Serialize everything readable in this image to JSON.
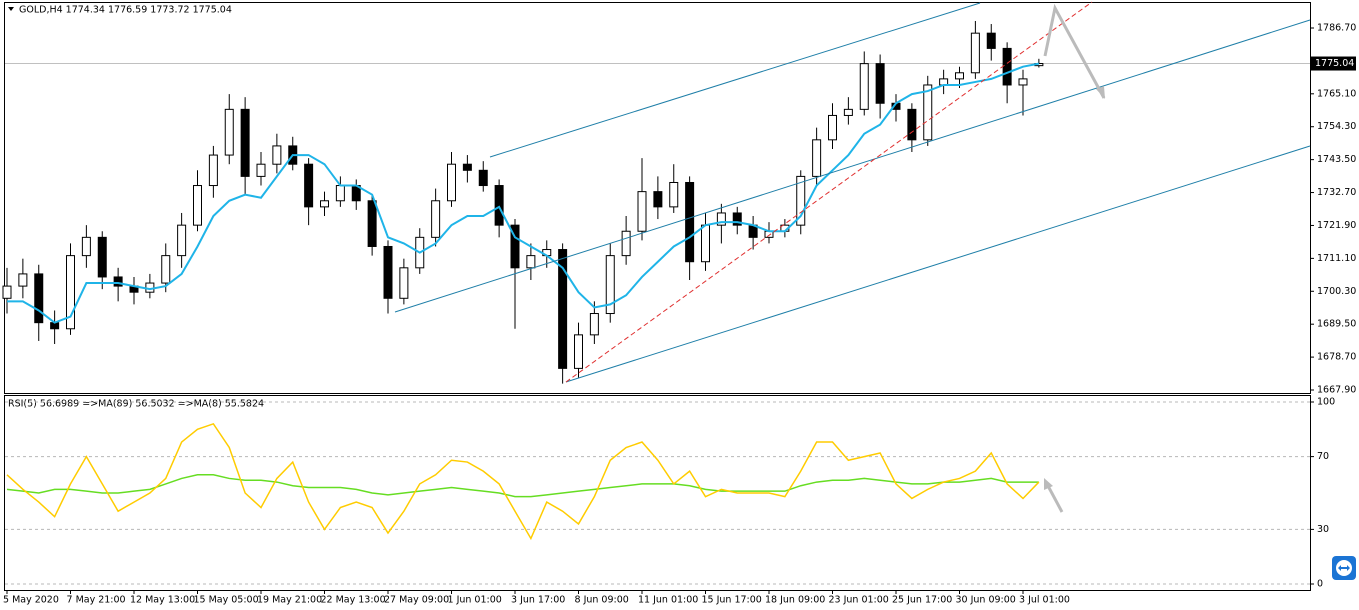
{
  "chart_data": [
    {
      "type": "candlestick",
      "title": "GOLD,H4  1774.34 1776.59 1773.72 1775.04",
      "categories": [
        "5 May 2020",
        null,
        null,
        null,
        "7 May 21:00",
        null,
        null,
        null,
        "12 May 13:00",
        null,
        null,
        null,
        "15 May 05:00",
        null,
        null,
        null,
        "19 May 21:00",
        null,
        null,
        null,
        "22 May 13:00",
        null,
        null,
        null,
        "27 May 09:00",
        null,
        null,
        null,
        "1 Jun 01:00",
        null,
        null,
        null,
        "3 Jun 17:00",
        null,
        null,
        null,
        "8 Jun 09:00",
        null,
        null,
        null,
        "11 Jun 01:00",
        null,
        null,
        null,
        "15 Jun 17:00",
        null,
        null,
        null,
        "18 Jun 09:00",
        null,
        null,
        null,
        "23 Jun 01:00",
        null,
        null,
        null,
        "25 Jun 17:00",
        null,
        null,
        null,
        "30 Jun 09:00",
        null,
        null,
        null,
        "3 Jul 01:00",
        null
      ],
      "open": [
        1698,
        1702,
        1706,
        1690,
        1688,
        1712,
        1718,
        1705,
        1702,
        1700,
        1703,
        1712,
        1722,
        1735,
        1745,
        1760,
        1738,
        1742,
        1748,
        1742,
        1728,
        1730,
        1735,
        1730,
        1715,
        1698,
        1708,
        1718,
        1730,
        1742,
        1740,
        1735,
        1722,
        1708,
        1712,
        1714,
        1675,
        1686,
        1693,
        1712,
        1720,
        1733,
        1728,
        1736,
        1710,
        1722,
        1726,
        1722,
        1718,
        1720,
        1722,
        1738,
        1750,
        1758,
        1760,
        1775,
        1762,
        1760,
        1750,
        1768,
        1770,
        1772,
        1785,
        1780,
        1768,
        1774.34
      ],
      "high": [
        1708,
        1711,
        1709,
        1694,
        1716,
        1722,
        1720,
        1708,
        1705,
        1706,
        1716,
        1726,
        1740,
        1748,
        1765,
        1764,
        1746,
        1752,
        1751,
        1744,
        1733,
        1738,
        1737,
        1732,
        1717,
        1711,
        1721,
        1734,
        1746,
        1745,
        1743,
        1737,
        1724,
        1716,
        1717,
        1716,
        1690,
        1697,
        1716,
        1725,
        1744,
        1738,
        1742,
        1738,
        1726,
        1729,
        1728,
        1725,
        1723,
        1724,
        1740,
        1754,
        1762,
        1764,
        1779,
        1778,
        1765,
        1762,
        1771,
        1773,
        1774,
        1789,
        1788,
        1782,
        1773,
        1776.59
      ],
      "low": [
        1693,
        1698,
        1684,
        1683,
        1686,
        1708,
        1701,
        1697,
        1696,
        1698,
        1700,
        1708,
        1720,
        1731,
        1742,
        1732,
        1735,
        1739,
        1740,
        1722,
        1725,
        1728,
        1727,
        1712,
        1693,
        1696,
        1706,
        1715,
        1728,
        1736,
        1733,
        1718,
        1688,
        1704,
        1708,
        1670,
        1672,
        1683,
        1690,
        1709,
        1717,
        1724,
        1726,
        1704,
        1707,
        1716,
        1719,
        1714,
        1716,
        1718,
        1719,
        1735,
        1747,
        1755,
        1758,
        1757,
        1756,
        1746,
        1748,
        1765,
        1767,
        1770,
        1776,
        1762,
        1758,
        1773.72
      ],
      "close": [
        1702,
        1706,
        1690,
        1688,
        1712,
        1718,
        1705,
        1702,
        1700,
        1703,
        1712,
        1722,
        1735,
        1745,
        1760,
        1738,
        1742,
        1748,
        1742,
        1728,
        1730,
        1735,
        1730,
        1715,
        1698,
        1708,
        1718,
        1730,
        1742,
        1740,
        1735,
        1722,
        1708,
        1712,
        1714,
        1675,
        1686,
        1693,
        1712,
        1720,
        1733,
        1728,
        1736,
        1710,
        1722,
        1726,
        1722,
        1718,
        1720,
        1722,
        1738,
        1750,
        1758,
        1760,
        1775,
        1762,
        1760,
        1750,
        1768,
        1770,
        1772,
        1785,
        1780,
        1768,
        1770,
        1775.04
      ],
      "overlay": {
        "color": "#1fb4e8",
        "values": [
          1697,
          1697,
          1694,
          1690,
          1692,
          1703,
          1703,
          1703,
          1702,
          1701,
          1702,
          1706,
          1715,
          1725,
          1730,
          1732,
          1731,
          1738,
          1745,
          1745,
          1742,
          1735,
          1735,
          1732,
          1718,
          1716,
          1713,
          1716,
          1722,
          1725,
          1725,
          1728,
          1718,
          1715,
          1712,
          1708,
          1700,
          1695,
          1696,
          1699,
          1705,
          1710,
          1715,
          1718,
          1722,
          1723,
          1723,
          1722,
          1720,
          1720,
          1725,
          1735,
          1740,
          1745,
          1752,
          1755,
          1762,
          1765,
          1766,
          1768,
          1768,
          1769,
          1770,
          1772,
          1774,
          1775
        ]
      },
      "last_price": 1775.04,
      "ylim": [
        1666.92,
        1794.9
      ],
      "yticks": [
        {
          "value": 1786.7,
          "label": "1786.70"
        },
        {
          "value": 1765.1,
          "label": "1765.10"
        },
        {
          "value": 1754.3,
          "label": "1754.30"
        },
        {
          "value": 1743.5,
          "label": "1743.50"
        },
        {
          "value": 1732.7,
          "label": "1732.70"
        },
        {
          "value": 1721.9,
          "label": "1721.90"
        },
        {
          "value": 1711.1,
          "label": "1711.10"
        },
        {
          "value": 1700.3,
          "label": "1700.30"
        },
        {
          "value": 1689.5,
          "label": "1689.50"
        },
        {
          "value": 1678.7,
          "label": "1678.70"
        },
        {
          "value": 1667.9,
          "label": "1667.90"
        }
      ]
    },
    {
      "type": "line",
      "title": "RSI(5) 56.6989  =>MA(89) 56.5032  =>MA(8) 55.5824",
      "series": [
        {
          "color": "#ffcc00",
          "values": [
            60,
            52,
            45,
            37,
            55,
            70,
            55,
            40,
            45,
            50,
            58,
            78,
            85,
            88,
            75,
            50,
            42,
            58,
            67,
            45,
            30,
            42,
            45,
            42,
            28,
            40,
            55,
            60,
            68,
            67,
            62,
            55,
            40,
            25,
            45,
            40,
            33,
            48,
            68,
            75,
            78,
            68,
            55,
            62,
            48,
            52,
            50,
            50,
            50,
            48,
            62,
            78,
            78,
            68,
            70,
            72,
            55,
            47,
            52,
            56,
            58,
            62,
            72,
            55,
            47,
            56
          ]
        },
        {
          "color": "#66dd22",
          "values": [
            52,
            51,
            50,
            52,
            52,
            51,
            50,
            50,
            51,
            52,
            55,
            58,
            60,
            60,
            58,
            57,
            57,
            56,
            54,
            53,
            53,
            53,
            52,
            50,
            49,
            50,
            51,
            52,
            53,
            52,
            51,
            50,
            48,
            48,
            49,
            50,
            51,
            52,
            53,
            54,
            55,
            55,
            55,
            54,
            52,
            51,
            51,
            51,
            51,
            51,
            54,
            56,
            57,
            57,
            58,
            57,
            56,
            55,
            55,
            56,
            56,
            57,
            58,
            56,
            56,
            56
          ]
        }
      ],
      "ylim": [
        -3.3,
        103.3
      ],
      "yticks": [
        100,
        70,
        30,
        0
      ],
      "grid": true
    }
  ]
}
